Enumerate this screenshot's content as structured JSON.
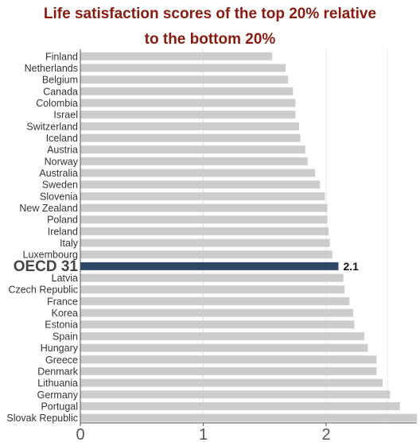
{
  "chart_data": {
    "type": "bar",
    "orientation": "horizontal",
    "title_lines": [
      "Life satisfaction scores of the top 20% relative",
      "to the bottom 20%"
    ],
    "categories": [
      "Finland",
      "Netherlands",
      "Belgium",
      "Canada",
      "Colombia",
      "Israel",
      "Switzerland",
      "Iceland",
      "Austria",
      "Norway",
      "Australia",
      "Sweden",
      "Slovenia",
      "New Zealand",
      "Poland",
      "Ireland",
      "Italy",
      "Luxembourg",
      "OECD 31",
      "Latvia",
      "Czech Republic",
      "France",
      "Korea",
      "Estonia",
      "Spain",
      "Hungary",
      "Greece",
      "Denmark",
      "Lithuania",
      "Germany",
      "Portugal",
      "Slovak Republic"
    ],
    "values": [
      1.56,
      1.67,
      1.69,
      1.73,
      1.75,
      1.75,
      1.78,
      1.79,
      1.83,
      1.85,
      1.91,
      1.95,
      1.99,
      2.01,
      2.01,
      2.02,
      2.03,
      2.05,
      2.1,
      2.14,
      2.15,
      2.19,
      2.22,
      2.23,
      2.31,
      2.34,
      2.41,
      2.41,
      2.46,
      2.52,
      2.6,
      2.74
    ],
    "highlight": {
      "category": "OECD 31",
      "label": "2.1"
    },
    "xlim": [
      0,
      2.75
    ],
    "xticks": [
      "0",
      "1",
      "2"
    ],
    "grid": true,
    "colors": {
      "bar": "#cccccc",
      "highlight": "#2e4766",
      "title": "#8b1a0f"
    }
  }
}
